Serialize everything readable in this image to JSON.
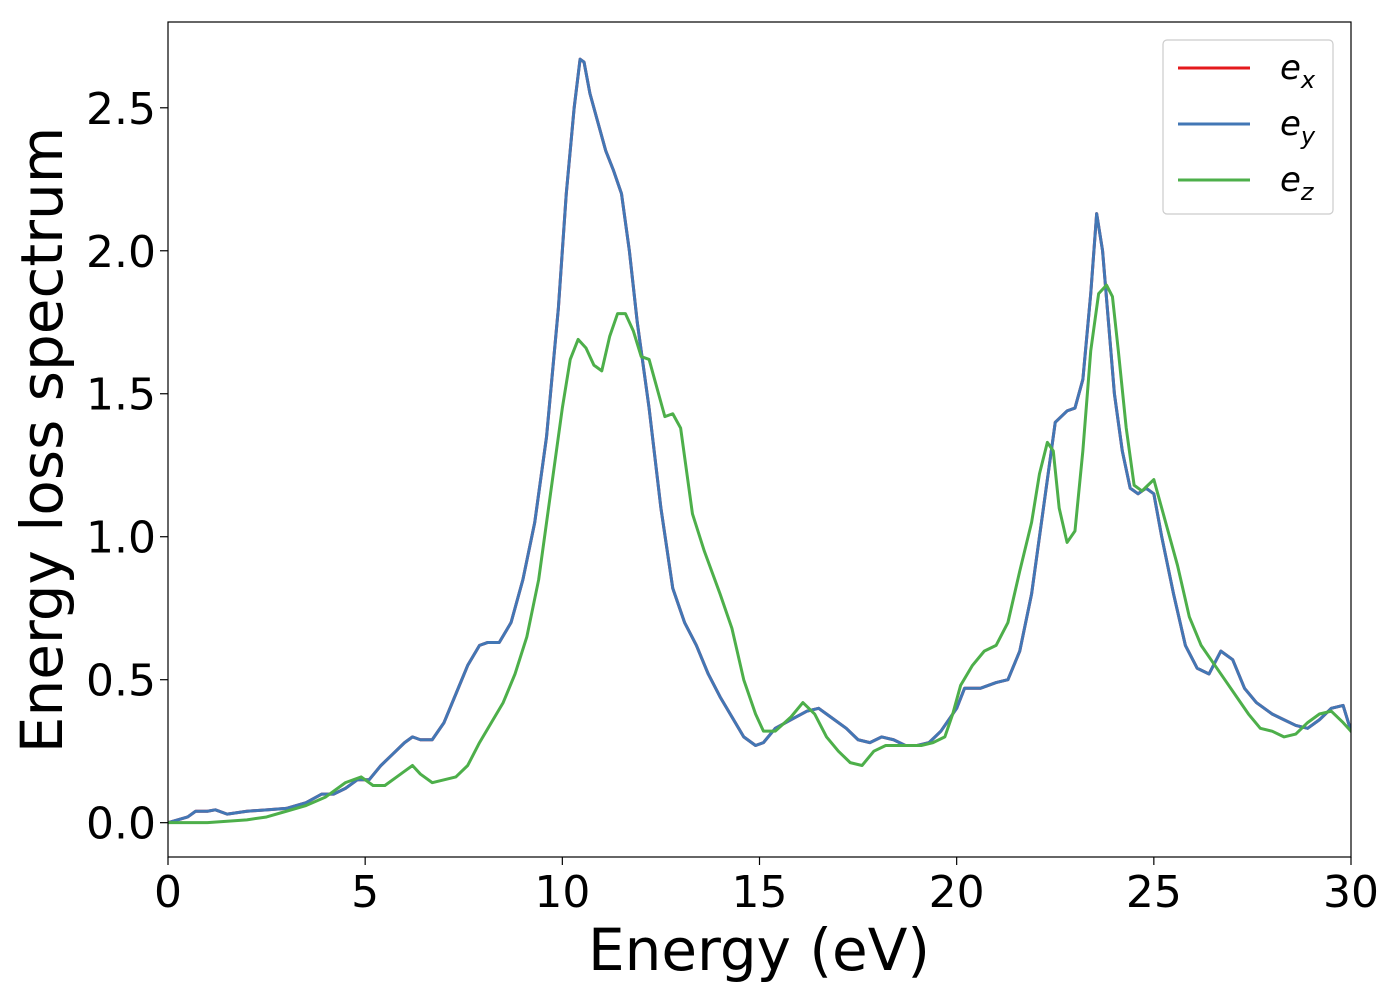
{
  "chart_data": {
    "type": "line",
    "xlabel": "Energy (eV)",
    "ylabel": "Energy loss spectrum",
    "xlim": [
      0,
      30
    ],
    "ylim": [
      -0.12,
      2.8
    ],
    "xticks": [
      0,
      5,
      10,
      15,
      20,
      25,
      30
    ],
    "xtick_labels": [
      "0",
      "5",
      "10",
      "15",
      "20",
      "25",
      "30"
    ],
    "yticks": [
      0.0,
      0.5,
      1.0,
      1.5,
      2.0,
      2.5
    ],
    "ytick_labels": [
      "0.0",
      "0.5",
      "1.0",
      "1.5",
      "2.0",
      "2.5"
    ],
    "grid": false,
    "legend_position": "top-right",
    "series": [
      {
        "name": "e",
        "subscript": "x",
        "color": "#e41a1c",
        "x": [
          0,
          0.5,
          0.7,
          1.0,
          1.2,
          1.5,
          2.0,
          2.5,
          3.0,
          3.5,
          3.9,
          4.2,
          4.5,
          4.8,
          5.1,
          5.4,
          5.7,
          6.0,
          6.2,
          6.4,
          6.7,
          7.0,
          7.3,
          7.6,
          7.9,
          8.1,
          8.4,
          8.7,
          9.0,
          9.3,
          9.6,
          9.9,
          10.1,
          10.3,
          10.45,
          10.55,
          10.7,
          10.9,
          11.1,
          11.3,
          11.5,
          11.7,
          11.9,
          12.2,
          12.5,
          12.8,
          13.1,
          13.4,
          13.7,
          14.0,
          14.3,
          14.6,
          14.9,
          15.1,
          15.4,
          15.8,
          16.2,
          16.5,
          16.8,
          17.2,
          17.5,
          17.8,
          18.1,
          18.4,
          18.7,
          19.0,
          19.3,
          19.6,
          20.0,
          20.2,
          20.6,
          21.0,
          21.3,
          21.6,
          21.9,
          22.1,
          22.3,
          22.5,
          22.8,
          23.0,
          23.2,
          23.4,
          23.55,
          23.7,
          23.85,
          24.0,
          24.2,
          24.4,
          24.6,
          24.8,
          25.0,
          25.2,
          25.5,
          25.8,
          26.1,
          26.4,
          26.7,
          27.0,
          27.3,
          27.6,
          28.0,
          28.3,
          28.6,
          28.9,
          29.2,
          29.5,
          29.8,
          30.0
        ],
        "y": [
          0.0,
          0.02,
          0.04,
          0.04,
          0.045,
          0.03,
          0.04,
          0.045,
          0.05,
          0.07,
          0.1,
          0.1,
          0.12,
          0.15,
          0.15,
          0.2,
          0.24,
          0.28,
          0.3,
          0.29,
          0.29,
          0.35,
          0.45,
          0.55,
          0.62,
          0.63,
          0.63,
          0.7,
          0.85,
          1.05,
          1.35,
          1.8,
          2.2,
          2.5,
          2.67,
          2.66,
          2.55,
          2.45,
          2.35,
          2.28,
          2.2,
          2.0,
          1.75,
          1.45,
          1.1,
          0.82,
          0.7,
          0.62,
          0.52,
          0.44,
          0.37,
          0.3,
          0.27,
          0.28,
          0.33,
          0.36,
          0.39,
          0.4,
          0.37,
          0.33,
          0.29,
          0.28,
          0.3,
          0.29,
          0.27,
          0.27,
          0.28,
          0.32,
          0.4,
          0.47,
          0.47,
          0.49,
          0.5,
          0.6,
          0.8,
          1.0,
          1.2,
          1.4,
          1.44,
          1.45,
          1.55,
          1.85,
          2.13,
          2.0,
          1.75,
          1.5,
          1.3,
          1.17,
          1.15,
          1.17,
          1.15,
          1.0,
          0.8,
          0.62,
          0.54,
          0.52,
          0.6,
          0.57,
          0.47,
          0.42,
          0.38,
          0.36,
          0.34,
          0.33,
          0.36,
          0.4,
          0.41,
          0.32
        ]
      },
      {
        "name": "e",
        "subscript": "y",
        "color": "#4277b5",
        "x": [
          0,
          0.5,
          0.7,
          1.0,
          1.2,
          1.5,
          2.0,
          2.5,
          3.0,
          3.5,
          3.9,
          4.2,
          4.5,
          4.8,
          5.1,
          5.4,
          5.7,
          6.0,
          6.2,
          6.4,
          6.7,
          7.0,
          7.3,
          7.6,
          7.9,
          8.1,
          8.4,
          8.7,
          9.0,
          9.3,
          9.6,
          9.9,
          10.1,
          10.3,
          10.45,
          10.55,
          10.7,
          10.9,
          11.1,
          11.3,
          11.5,
          11.7,
          11.9,
          12.2,
          12.5,
          12.8,
          13.1,
          13.4,
          13.7,
          14.0,
          14.3,
          14.6,
          14.9,
          15.1,
          15.4,
          15.8,
          16.2,
          16.5,
          16.8,
          17.2,
          17.5,
          17.8,
          18.1,
          18.4,
          18.7,
          19.0,
          19.3,
          19.6,
          20.0,
          20.2,
          20.6,
          21.0,
          21.3,
          21.6,
          21.9,
          22.1,
          22.3,
          22.5,
          22.8,
          23.0,
          23.2,
          23.4,
          23.55,
          23.7,
          23.85,
          24.0,
          24.2,
          24.4,
          24.6,
          24.8,
          25.0,
          25.2,
          25.5,
          25.8,
          26.1,
          26.4,
          26.7,
          27.0,
          27.3,
          27.6,
          28.0,
          28.3,
          28.6,
          28.9,
          29.2,
          29.5,
          29.8,
          30.0
        ],
        "y": [
          0.0,
          0.02,
          0.04,
          0.04,
          0.045,
          0.03,
          0.04,
          0.045,
          0.05,
          0.07,
          0.1,
          0.1,
          0.12,
          0.15,
          0.15,
          0.2,
          0.24,
          0.28,
          0.3,
          0.29,
          0.29,
          0.35,
          0.45,
          0.55,
          0.62,
          0.63,
          0.63,
          0.7,
          0.85,
          1.05,
          1.35,
          1.8,
          2.2,
          2.5,
          2.67,
          2.66,
          2.55,
          2.45,
          2.35,
          2.28,
          2.2,
          2.0,
          1.75,
          1.45,
          1.1,
          0.82,
          0.7,
          0.62,
          0.52,
          0.44,
          0.37,
          0.3,
          0.27,
          0.28,
          0.33,
          0.36,
          0.39,
          0.4,
          0.37,
          0.33,
          0.29,
          0.28,
          0.3,
          0.29,
          0.27,
          0.27,
          0.28,
          0.32,
          0.4,
          0.47,
          0.47,
          0.49,
          0.5,
          0.6,
          0.8,
          1.0,
          1.2,
          1.4,
          1.44,
          1.45,
          1.55,
          1.85,
          2.13,
          2.0,
          1.75,
          1.5,
          1.3,
          1.17,
          1.15,
          1.17,
          1.15,
          1.0,
          0.8,
          0.62,
          0.54,
          0.52,
          0.6,
          0.57,
          0.47,
          0.42,
          0.38,
          0.36,
          0.34,
          0.33,
          0.36,
          0.4,
          0.41,
          0.32
        ]
      },
      {
        "name": "e",
        "subscript": "z",
        "color": "#4daf4a",
        "x": [
          0,
          1.0,
          2.0,
          2.5,
          3.0,
          3.5,
          4.0,
          4.5,
          4.9,
          5.2,
          5.5,
          5.8,
          6.0,
          6.2,
          6.4,
          6.7,
          7.0,
          7.3,
          7.6,
          7.9,
          8.2,
          8.5,
          8.8,
          9.1,
          9.4,
          9.7,
          10.0,
          10.2,
          10.4,
          10.6,
          10.8,
          11.0,
          11.2,
          11.4,
          11.6,
          11.8,
          12.0,
          12.2,
          12.4,
          12.6,
          12.8,
          13.0,
          13.3,
          13.6,
          14.0,
          14.3,
          14.6,
          14.9,
          15.1,
          15.4,
          15.8,
          16.1,
          16.4,
          16.7,
          17.0,
          17.3,
          17.6,
          17.9,
          18.2,
          18.5,
          18.8,
          19.1,
          19.4,
          19.7,
          19.9,
          20.1,
          20.4,
          20.7,
          21.0,
          21.3,
          21.6,
          21.9,
          22.1,
          22.3,
          22.45,
          22.6,
          22.8,
          23.0,
          23.2,
          23.4,
          23.6,
          23.8,
          23.95,
          24.1,
          24.3,
          24.5,
          24.7,
          24.85,
          25.0,
          25.2,
          25.4,
          25.6,
          25.9,
          26.2,
          26.5,
          26.8,
          27.1,
          27.4,
          27.7,
          28.0,
          28.3,
          28.6,
          28.9,
          29.2,
          29.5,
          29.8,
          30.0
        ],
        "y": [
          0.0,
          0.0,
          0.01,
          0.02,
          0.04,
          0.06,
          0.09,
          0.14,
          0.16,
          0.13,
          0.13,
          0.16,
          0.18,
          0.2,
          0.17,
          0.14,
          0.15,
          0.16,
          0.2,
          0.28,
          0.35,
          0.42,
          0.52,
          0.65,
          0.85,
          1.15,
          1.45,
          1.62,
          1.69,
          1.66,
          1.6,
          1.58,
          1.7,
          1.78,
          1.78,
          1.72,
          1.63,
          1.62,
          1.52,
          1.42,
          1.43,
          1.38,
          1.08,
          0.95,
          0.8,
          0.68,
          0.5,
          0.38,
          0.32,
          0.32,
          0.37,
          0.42,
          0.38,
          0.3,
          0.25,
          0.21,
          0.2,
          0.25,
          0.27,
          0.27,
          0.27,
          0.27,
          0.28,
          0.3,
          0.38,
          0.48,
          0.55,
          0.6,
          0.62,
          0.7,
          0.88,
          1.05,
          1.22,
          1.33,
          1.3,
          1.1,
          0.98,
          1.02,
          1.3,
          1.65,
          1.85,
          1.88,
          1.84,
          1.65,
          1.38,
          1.18,
          1.16,
          1.18,
          1.2,
          1.1,
          1.0,
          0.9,
          0.72,
          0.62,
          0.56,
          0.5,
          0.44,
          0.38,
          0.33,
          0.32,
          0.3,
          0.31,
          0.35,
          0.38,
          0.39,
          0.35,
          0.32
        ]
      }
    ]
  }
}
